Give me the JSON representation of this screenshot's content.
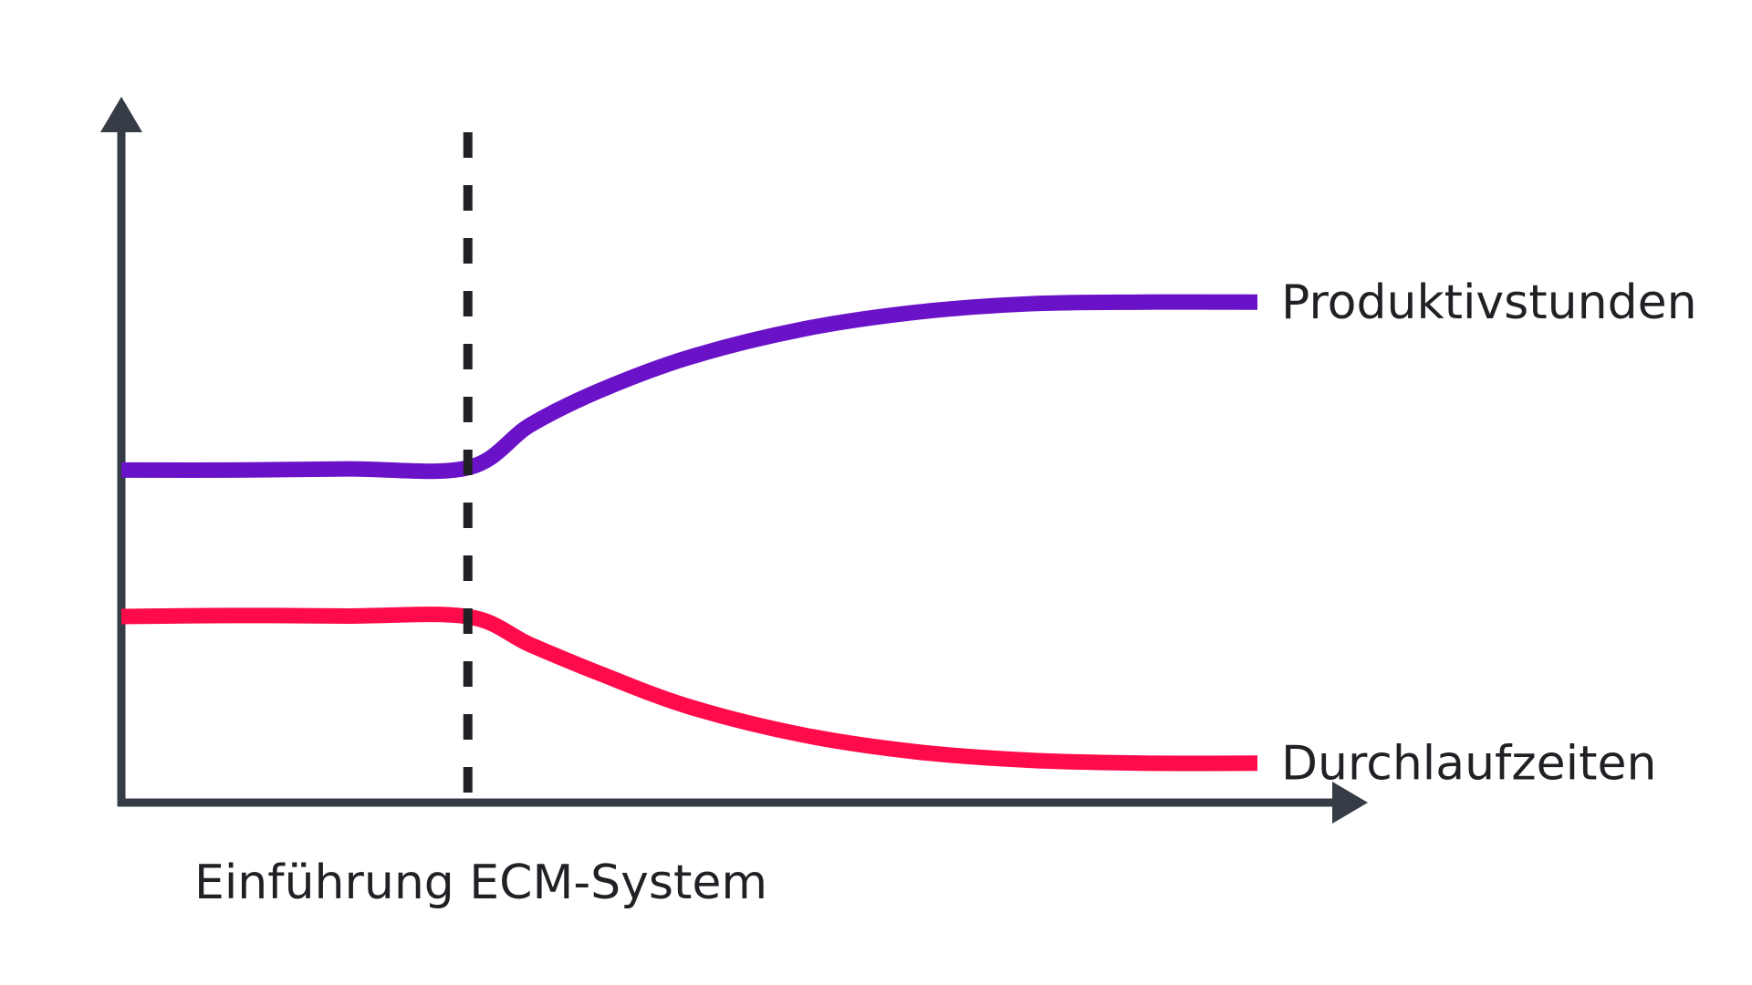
{
  "chart_data": {
    "type": "line",
    "title": "",
    "xlabel": "",
    "ylabel": "",
    "x_range": [
      0,
      1
    ],
    "y_range": [
      0,
      1
    ],
    "grid": false,
    "legend": "none",
    "annotation": {
      "x": 0.305,
      "label": "Einführung ECM-System",
      "style": "dashed"
    },
    "series": [
      {
        "name": "Produktivstunden",
        "color": "#6a12c8",
        "x": [
          0,
          0.1,
          0.2,
          0.305,
          0.36,
          0.42,
          0.5,
          0.6,
          0.7,
          0.8,
          0.9,
          1.0
        ],
        "y": [
          0.59,
          0.59,
          0.592,
          0.594,
          0.67,
          0.73,
          0.79,
          0.84,
          0.87,
          0.885,
          0.888,
          0.888
        ]
      },
      {
        "name": "Durchlaufzeiten",
        "color": "#ff0a4a",
        "x": [
          0,
          0.1,
          0.2,
          0.305,
          0.36,
          0.42,
          0.5,
          0.6,
          0.7,
          0.8,
          0.9,
          1.0
        ],
        "y": [
          0.33,
          0.332,
          0.331,
          0.33,
          0.28,
          0.23,
          0.17,
          0.12,
          0.09,
          0.075,
          0.07,
          0.07
        ]
      }
    ]
  },
  "colors": {
    "axis": "#353c45",
    "guide": "#1f2125"
  }
}
